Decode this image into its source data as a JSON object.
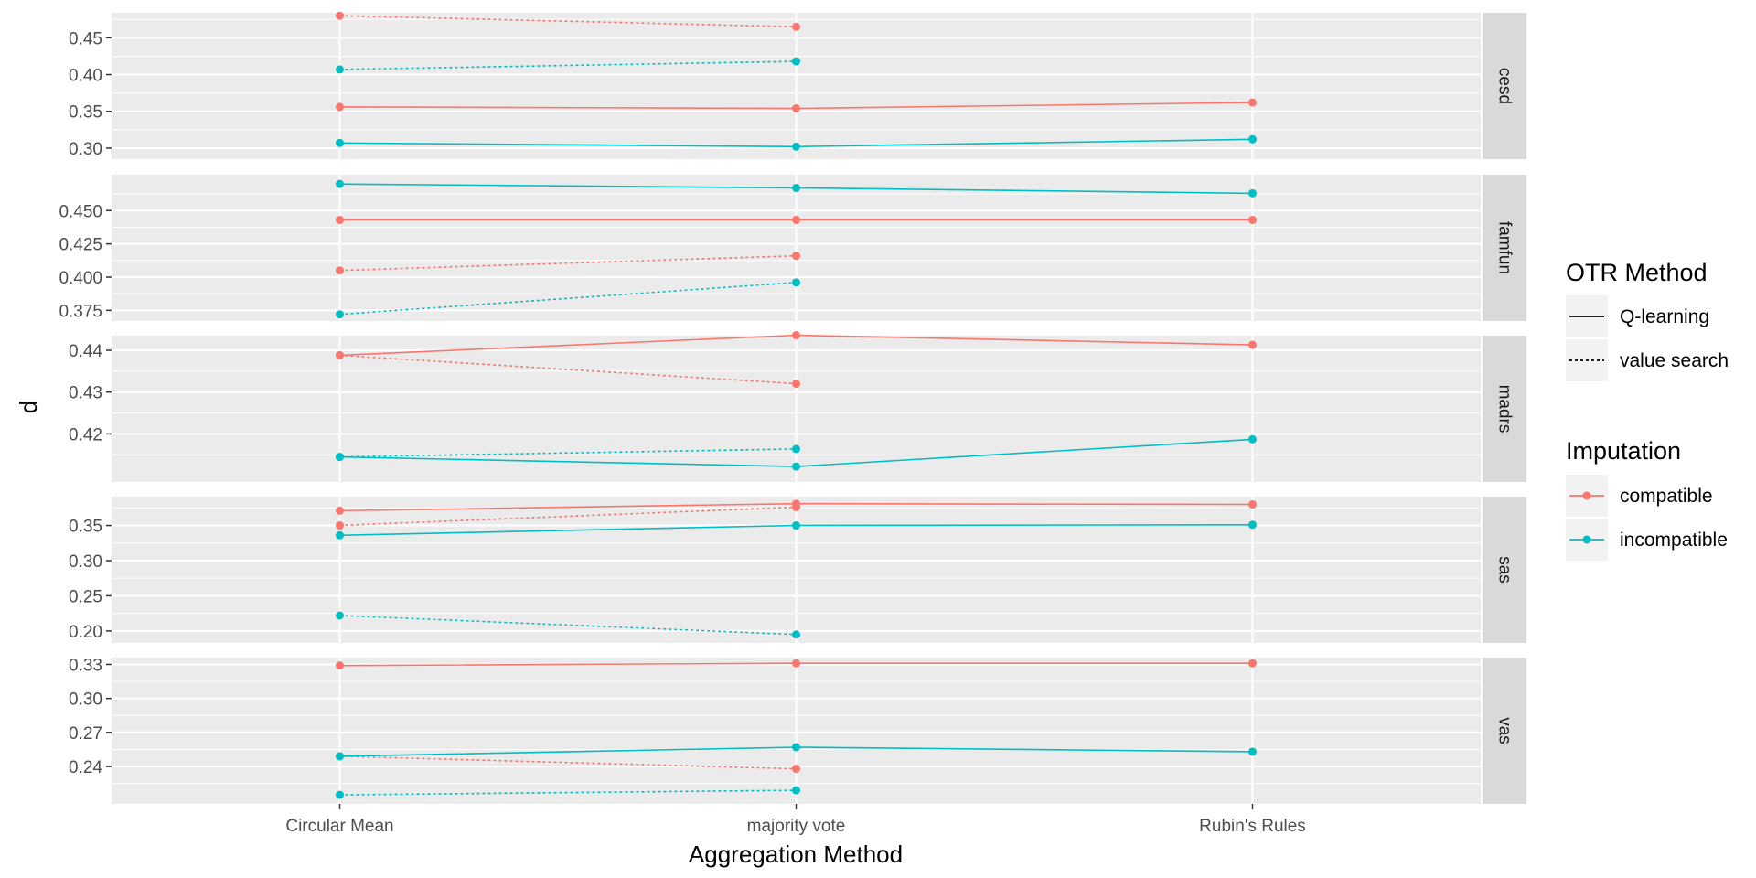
{
  "chart_data": {
    "type": "line",
    "xlabel": "Aggregation Method",
    "ylabel": "d",
    "categories": [
      "Circular Mean",
      "majority vote",
      "Rubin's Rules"
    ],
    "legend_position": "right",
    "grid": true,
    "legend": {
      "linetype_title": "OTR Method",
      "linetype_items": [
        {
          "label": "Q-learning",
          "dash": "solid"
        },
        {
          "label": "value search",
          "dash": "dotted"
        }
      ],
      "color_title": "Imputation",
      "color_items": [
        {
          "label": "compatible",
          "color": "#F8766D"
        },
        {
          "label": "incompatible",
          "color": "#00BFC4"
        }
      ]
    },
    "panels": [
      {
        "strip": "cesd",
        "ylim": [
          0.285,
          0.484
        ],
        "yticks": [
          0.3,
          0.35,
          0.4,
          0.45
        ],
        "ytick_labels": [
          "0.30",
          "0.35",
          "0.40",
          "0.45"
        ],
        "series": [
          {
            "imputation": "compatible",
            "method": "Q-learning",
            "values": [
              0.356,
              0.354,
              0.362
            ]
          },
          {
            "imputation": "compatible",
            "method": "value search",
            "values": [
              0.48,
              0.465,
              null
            ]
          },
          {
            "imputation": "incompatible",
            "method": "Q-learning",
            "values": [
              0.307,
              0.302,
              0.312
            ]
          },
          {
            "imputation": "incompatible",
            "method": "value search",
            "values": [
              0.407,
              0.418,
              null
            ]
          }
        ]
      },
      {
        "strip": "famfun",
        "ylim": [
          0.367,
          0.477
        ],
        "yticks": [
          0.375,
          0.4,
          0.425,
          0.45
        ],
        "ytick_labels": [
          "0.375",
          "0.400",
          "0.425",
          "0.450"
        ],
        "series": [
          {
            "imputation": "compatible",
            "method": "Q-learning",
            "values": [
              0.443,
              0.443,
              0.443
            ]
          },
          {
            "imputation": "compatible",
            "method": "value search",
            "values": [
              0.405,
              0.416,
              null
            ]
          },
          {
            "imputation": "incompatible",
            "method": "Q-learning",
            "values": [
              0.47,
              0.467,
              0.463
            ]
          },
          {
            "imputation": "incompatible",
            "method": "value search",
            "values": [
              0.372,
              0.396,
              null
            ]
          }
        ]
      },
      {
        "strip": "madrs",
        "ylim": [
          0.4085,
          0.4435
        ],
        "yticks": [
          0.42,
          0.43,
          0.44
        ],
        "ytick_labels": [
          "0.42",
          "0.43",
          "0.44"
        ],
        "series": [
          {
            "imputation": "compatible",
            "method": "Q-learning",
            "values": [
              0.4388,
              0.4436,
              0.4413
            ]
          },
          {
            "imputation": "compatible",
            "method": "value search",
            "values": [
              0.4388,
              0.432,
              null
            ]
          },
          {
            "imputation": "incompatible",
            "method": "Q-learning",
            "values": [
              0.4145,
              0.4122,
              0.4187
            ]
          },
          {
            "imputation": "incompatible",
            "method": "value search",
            "values": [
              0.4145,
              0.4164,
              null
            ]
          }
        ]
      },
      {
        "strip": "sas",
        "ylim": [
          0.183,
          0.391
        ],
        "yticks": [
          0.2,
          0.25,
          0.3,
          0.35
        ],
        "ytick_labels": [
          "0.20",
          "0.25",
          "0.30",
          "0.35"
        ],
        "series": [
          {
            "imputation": "compatible",
            "method": "Q-learning",
            "values": [
              0.371,
              0.381,
              0.38
            ]
          },
          {
            "imputation": "compatible",
            "method": "value search",
            "values": [
              0.35,
              0.376,
              null
            ]
          },
          {
            "imputation": "incompatible",
            "method": "Q-learning",
            "values": [
              0.336,
              0.35,
              0.351
            ]
          },
          {
            "imputation": "incompatible",
            "method": "value search",
            "values": [
              0.222,
              0.195,
              null
            ]
          }
        ]
      },
      {
        "strip": "vas",
        "ylim": [
          0.207,
          0.336
        ],
        "yticks": [
          0.24,
          0.27,
          0.3,
          0.33
        ],
        "ytick_labels": [
          "0.24",
          "0.27",
          "0.30",
          "0.33"
        ],
        "series": [
          {
            "imputation": "compatible",
            "method": "Q-learning",
            "values": [
              0.329,
              0.331,
              0.331
            ]
          },
          {
            "imputation": "compatible",
            "method": "value search",
            "values": [
              0.249,
              0.238,
              null
            ]
          },
          {
            "imputation": "incompatible",
            "method": "Q-learning",
            "values": [
              0.249,
              0.257,
              0.253
            ]
          },
          {
            "imputation": "incompatible",
            "method": "value search",
            "values": [
              0.215,
              0.219,
              null
            ]
          }
        ]
      }
    ]
  }
}
